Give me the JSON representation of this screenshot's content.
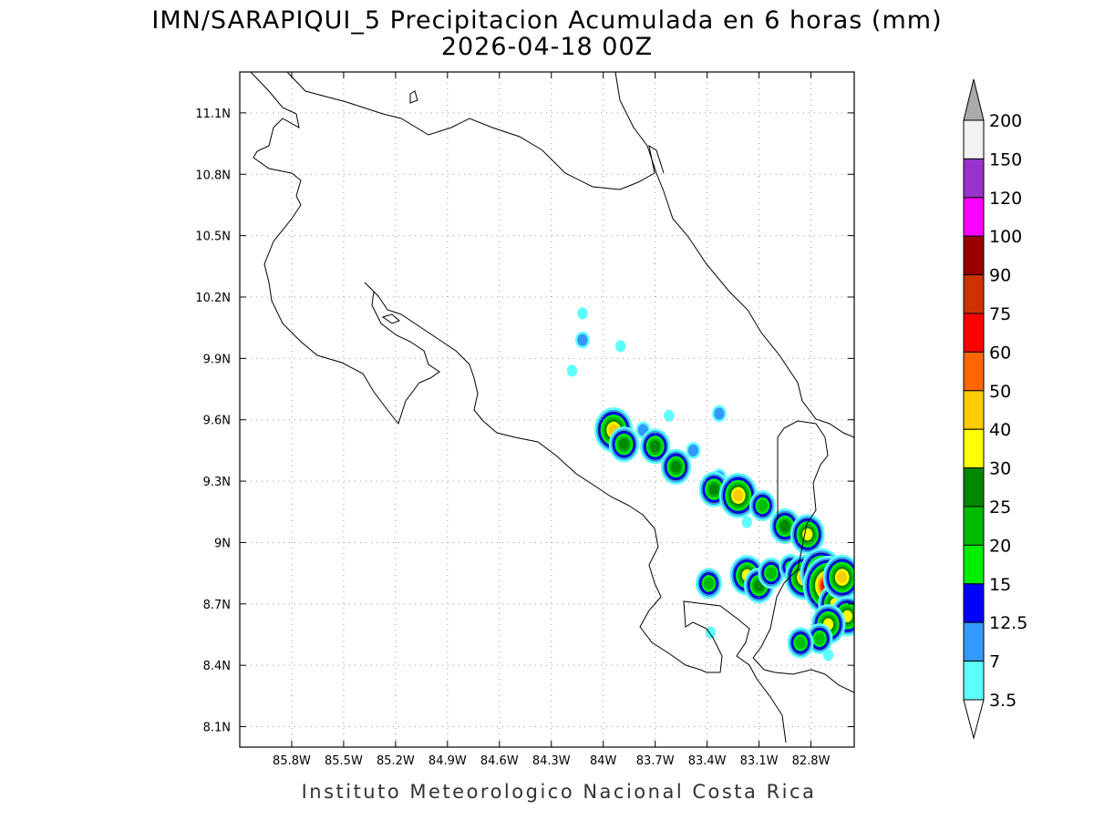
{
  "title": "IMN/SARAPIQUI_5 Precipitacion Acumulada en 6 horas (mm)",
  "subtitle": "2026-04-18 00Z",
  "credit": "Instituto Meteorologico Nacional Costa Rica",
  "map": {
    "lon_range": [
      -86.1,
      -82.55
    ],
    "lat_range": [
      8.0,
      11.3
    ],
    "lon_ticks": [
      "85.8W",
      "85.5W",
      "85.2W",
      "84.9W",
      "84.6W",
      "84.3W",
      "84W",
      "83.7W",
      "83.4W",
      "83.1W",
      "82.8W"
    ],
    "lat_ticks": [
      "11.1N",
      "10.8N",
      "10.5N",
      "10.2N",
      "9.9N",
      "9.6N",
      "9.3N",
      "9N",
      "8.7N",
      "8.4N",
      "8.1N"
    ],
    "grid": "dotted"
  },
  "colorbar": {
    "levels": [
      "3.5",
      "7",
      "12.5",
      "15",
      "20",
      "25",
      "30",
      "40",
      "50",
      "60",
      "75",
      "90",
      "100",
      "120",
      "150",
      "200"
    ],
    "colors": [
      "#ffffff",
      "#5effff",
      "#3399ff",
      "#0000ff",
      "#00ee00",
      "#00bb00",
      "#008800",
      "#ffff00",
      "#ffcc00",
      "#ff6600",
      "#ff0000",
      "#cc3300",
      "#990000",
      "#ff00ff",
      "#9933cc",
      "#f2f2f2",
      "#aaaaaa"
    ]
  },
  "precip_cells": [
    {
      "lon": -84.12,
      "lat": 10.12,
      "mm": 5
    },
    {
      "lon": -84.12,
      "lat": 9.99,
      "mm": 12
    },
    {
      "lon": -83.9,
      "lat": 9.96,
      "mm": 6
    },
    {
      "lon": -84.18,
      "lat": 9.84,
      "mm": 4
    },
    {
      "lon": -83.94,
      "lat": 9.55,
      "mm": 42
    },
    {
      "lon": -83.88,
      "lat": 9.48,
      "mm": 25
    },
    {
      "lon": -83.77,
      "lat": 9.55,
      "mm": 12
    },
    {
      "lon": -83.7,
      "lat": 9.47,
      "mm": 28
    },
    {
      "lon": -83.62,
      "lat": 9.62,
      "mm": 5
    },
    {
      "lon": -83.58,
      "lat": 9.37,
      "mm": 25
    },
    {
      "lon": -83.48,
      "lat": 9.45,
      "mm": 12
    },
    {
      "lon": -83.33,
      "lat": 9.63,
      "mm": 12
    },
    {
      "lon": -83.33,
      "lat": 9.32,
      "mm": 12
    },
    {
      "lon": -83.36,
      "lat": 9.26,
      "mm": 25
    },
    {
      "lon": -83.22,
      "lat": 9.23,
      "mm": 42
    },
    {
      "lon": -83.08,
      "lat": 9.18,
      "mm": 20
    },
    {
      "lon": -83.17,
      "lat": 9.1,
      "mm": 5
    },
    {
      "lon": -82.95,
      "lat": 9.08,
      "mm": 25
    },
    {
      "lon": -82.82,
      "lat": 9.04,
      "mm": 35
    },
    {
      "lon": -83.17,
      "lat": 8.84,
      "mm": 30
    },
    {
      "lon": -83.1,
      "lat": 8.79,
      "mm": 28
    },
    {
      "lon": -83.03,
      "lat": 8.85,
      "mm": 20
    },
    {
      "lon": -82.92,
      "lat": 8.88,
      "mm": 15
    },
    {
      "lon": -82.84,
      "lat": 8.83,
      "mm": 40
    },
    {
      "lon": -82.74,
      "lat": 8.85,
      "mm": 50
    },
    {
      "lon": -82.7,
      "lat": 8.79,
      "mm": 75
    },
    {
      "lon": -82.66,
      "lat": 8.7,
      "mm": 30
    },
    {
      "lon": -82.62,
      "lat": 8.83,
      "mm": 40
    },
    {
      "lon": -82.59,
      "lat": 8.64,
      "mm": 30
    },
    {
      "lon": -82.7,
      "lat": 8.6,
      "mm": 35
    },
    {
      "lon": -82.75,
      "lat": 8.53,
      "mm": 20
    },
    {
      "lon": -82.86,
      "lat": 8.51,
      "mm": 20
    },
    {
      "lon": -83.39,
      "lat": 8.8,
      "mm": 20
    },
    {
      "lon": -83.38,
      "lat": 8.56,
      "mm": 4
    },
    {
      "lon": -82.7,
      "lat": 8.45,
      "mm": 5
    }
  ]
}
